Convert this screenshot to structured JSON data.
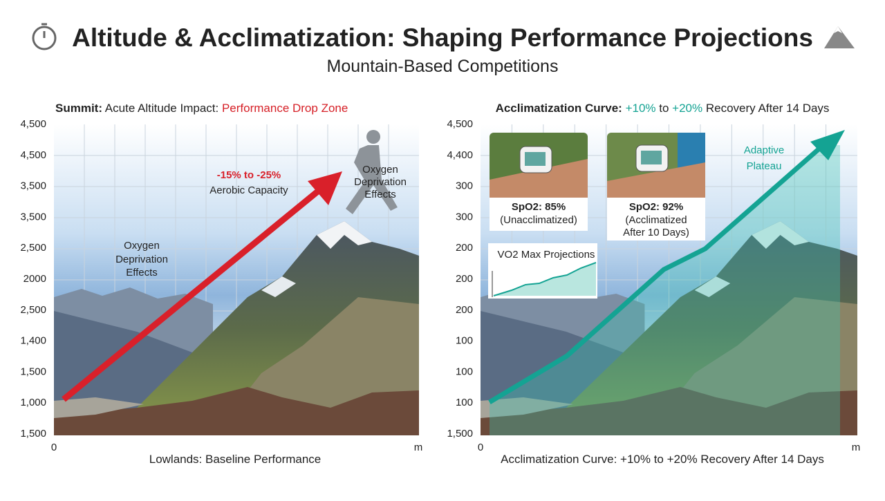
{
  "header": {
    "title": "Altitude & Acclimatization: Shaping Performance Projections",
    "subtitle": "Mountain-Based Competitions"
  },
  "left_panel": {
    "heading": {
      "label": "Summit:",
      "text": "Acute Altitude Impact:",
      "highlight": "Performance Drop Zone"
    },
    "y_labels": [
      "4,500",
      "4,500",
      "3,500",
      "3,500",
      "2,500",
      "2000",
      "2,500",
      "1,400",
      "1,500",
      "1,000",
      "1,500"
    ],
    "x_start": "0",
    "x_end": "m",
    "drop": "-15% to -25%",
    "drop_detail": "Aerobic Capacity",
    "effects_left": [
      "Oxygen",
      "Deprivation",
      "Effects"
    ],
    "effects_runner": [
      "Oxygen",
      "Deprivation",
      "Effects"
    ],
    "footer": "Lowlands: Baseline Performance"
  },
  "right_panel": {
    "heading": {
      "label": "Acclimatization Curve:",
      "low": "+10%",
      "mid": "to",
      "high": "+20%",
      "rest": "Recovery After 14 Days"
    },
    "y_labels": [
      "4,500",
      "4,400",
      "300",
      "300",
      "200",
      "200",
      "200",
      "100",
      "100",
      "100",
      "1,500"
    ],
    "x_start": "0",
    "x_end": "m",
    "plateau": [
      "Adaptive",
      "Plateau"
    ],
    "photo1": [
      "SpO2: 85%",
      "(Unacclimatized)"
    ],
    "photo2": [
      "SpO2: 92%",
      "(Acclimatized",
      "After 10 Days)"
    ],
    "mini_chart_title": "VO2 Max Projections",
    "footer": "Acclimatization Curve: +10% to +20% Recovery After 14 Days"
  }
}
